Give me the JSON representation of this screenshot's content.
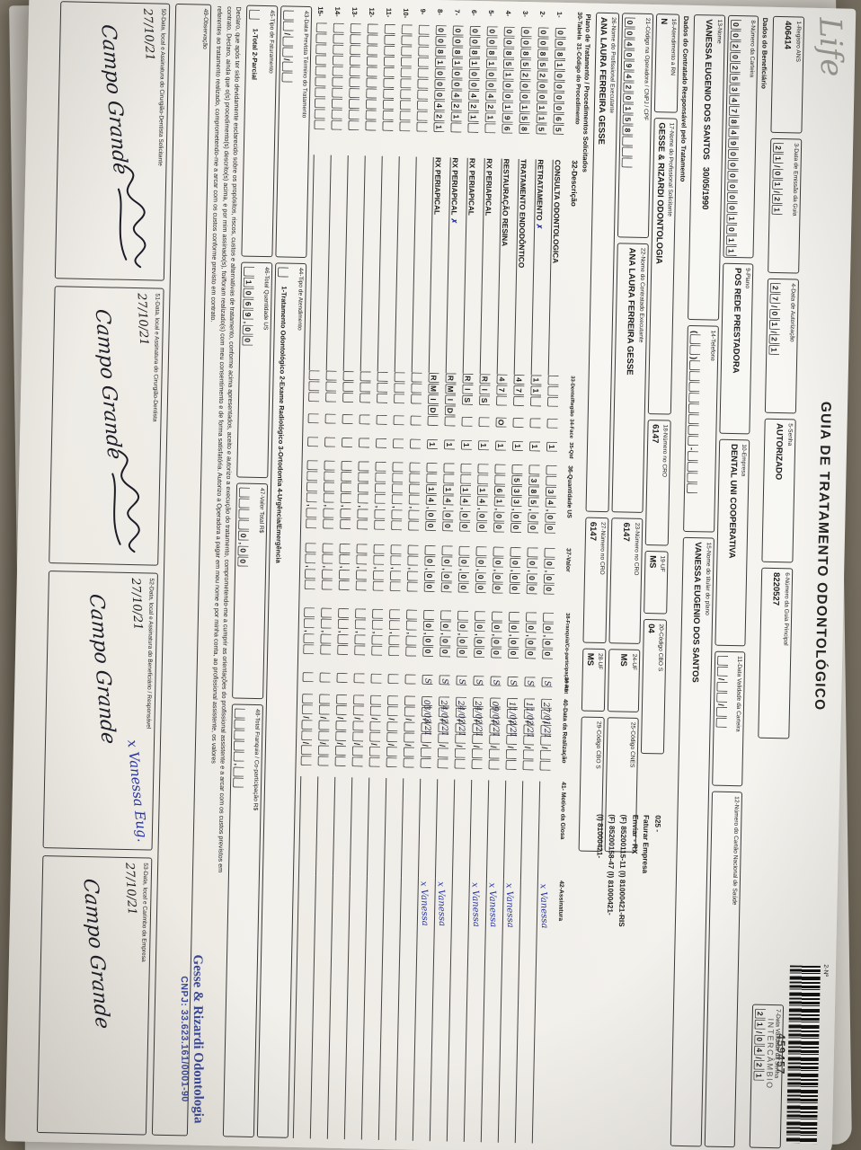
{
  "header": {
    "logo": "Life",
    "title": "GUIA DE TRATAMENTO ODONTOLÓGICO",
    "barcode_label": "2-Nº",
    "barcode_number": "459457",
    "barcode_caption": "INTERCÂMBIO"
  },
  "top_fields": {
    "registro_ans": {
      "label": "1-Registro ANS",
      "value": "406414"
    },
    "data_emissao": {
      "label": "3-Data de Emissão da Guia",
      "boxes": "21/01/21"
    },
    "data_autorizacao": {
      "label": "4-Data de Autorização",
      "boxes": "27/01/21"
    },
    "senha": {
      "label": "5-Senha",
      "value": "AUTORIZADO"
    },
    "guia_principal": {
      "label": "6-Número da Guia Principal",
      "value": "8220527"
    },
    "validade_senha": {
      "label": "7-Data Validade da Senha",
      "boxes": "21/04/21"
    }
  },
  "beneficiario": {
    "section": "Dados do Beneficiário",
    "carteira": {
      "label": "8-Número da Carteira",
      "boxes": "0020253478490000001011"
    },
    "plano": {
      "label": "9-Plano",
      "value": "POS REDE PRESTADORA"
    },
    "empresa": {
      "label": "10-Empresa",
      "value": "DENTAL UNI COOPERATIVA"
    },
    "validade_carteira": {
      "label": "11-Data Validade da Carteira",
      "boxes": "__/__/__"
    },
    "cartao_sus": {
      "label": "12-Número do Cartão Nacional de Saúde",
      "value": ""
    },
    "nome": {
      "label": "13-Nome",
      "value": "VANESSA EUGENIO DOS SANTOS",
      "nascimento": "30/05/1990"
    },
    "telefone": {
      "label": "14-Telefone",
      "boxes": "(__)________-____"
    },
    "titular": {
      "label": "15-Nome do titular do plano",
      "value": "VANESSA EUGENIO DOS SANTOS"
    }
  },
  "contratado": {
    "section": "Dados do Contratado Responsável pelo Tratamento",
    "rn": {
      "label": "16-Atendimento a RN",
      "value": "N"
    },
    "solicitante": {
      "label": "17-Nome do Profissional Solicitante",
      "value": "GESSE & RIZARDI ODONTOLOGIA"
    },
    "cro_solicitante": {
      "label": "18-Número no CRO",
      "value": "6147"
    },
    "uf_solicitante": {
      "label": "19-UF",
      "value": "MS"
    },
    "cbo_solicitante": {
      "label": "20-Código CBO S",
      "value": "04"
    },
    "codigo_operadora": {
      "label": "21-Código na Operadora / CNPJ / CPF",
      "boxes": "00409420158___"
    },
    "executante": {
      "label": "22-Nome do Contratado Executante",
      "value": "ANA LAURA FERREIRA GESSE"
    },
    "cro_executante": {
      "label": "23-Número no CRO",
      "value": "6147"
    },
    "uf_executante": {
      "label": "24-UF",
      "value": "MS"
    },
    "cnes": {
      "label": "25-Código CNES",
      "value": ""
    },
    "prof_executante": {
      "label": "26-Nome do Profissional Executante",
      "value": "ANA LAURA FERREIRA GESSE"
    },
    "cro_prof": {
      "label": "27-Número no CRO",
      "value": "6147"
    },
    "uf_prof": {
      "label": "28-UF",
      "value": "MS"
    },
    "cbo_prof": {
      "label": "29-Código CBO S",
      "value": ""
    },
    "annotation": [
      "025 -",
      "Faturar Empresa",
      "Enviar - RX",
      "(F) 85200115-11   (I) 81000421-RIS",
      "(F) 85200158-47   (I) 81000421-",
      "(I) 81000421-"
    ]
  },
  "table": {
    "section": "Plano de Tratamento / Procedimentos Solicitados",
    "headers": {
      "tabela": "30-Tabela",
      "codigo": "31-Código do Procedimento",
      "descricao": "32-Descrição",
      "dente": "33-Dente/Região",
      "face": "34-Face",
      "qtd": "35-Qtd",
      "us": "36-Quantidade US",
      "valor": "37-Valor",
      "franquia": "38-Franquia/Co-participação R$",
      "aut": "39-Aut",
      "data": "40-Data da Realização",
      "glosa": "41- Motivo da Glosa",
      "assinatura": "42-Assinatura"
    },
    "rows": [
      {
        "n": "1",
        "code": "0081000065",
        "desc": "CONSULTA ODONTOLOGICA",
        "dente": "___",
        "face": "_",
        "qtd": "1",
        "us": "__34,00",
        "valor": "_0,00",
        "franquia": "_0,00",
        "aut": "S",
        "data": "27/01/21",
        "assinatura": "x Vanessa",
        "mark": ""
      },
      {
        "n": "2",
        "code": "0085200115",
        "desc": "RETRATAMENTO",
        "dente": "11_",
        "face": "_",
        "qtd": "1",
        "us": "_385,00",
        "valor": "_0,00",
        "franquia": "_0,00",
        "aut": "S",
        "data": "11/02/21",
        "assinatura": "",
        "mark": "✗"
      },
      {
        "n": "3",
        "code": "0085200158",
        "desc": "TRATAMENTO ENDODÔNTICO",
        "dente": "47_",
        "face": "_",
        "qtd": "1",
        "us": "_533,00",
        "valor": "_0,00",
        "franquia": "_0,00",
        "aut": "S",
        "data": "11/02/21",
        "assinatura": "x Vanessa",
        "mark": ""
      },
      {
        "n": "4",
        "code": "0085100196",
        "desc": "RESTAURAÇÃO RESINA",
        "dente": "47_",
        "face": "O",
        "qtd": "1",
        "us": "__61,00",
        "valor": "_0,00",
        "franquia": "_0,00",
        "aut": "S",
        "data": "09/02/21",
        "assinatura": "x Vanessa",
        "mark": ""
      },
      {
        "n": "5",
        "code": "008100421_",
        "desc": "RX PERIAPICAL",
        "dente": "RIS",
        "face": "_",
        "qtd": "1",
        "us": "__14,00",
        "valor": "_0,00",
        "franquia": "_0,00",
        "aut": "S",
        "data": "24/02/21",
        "assinatura": "x Vanessa",
        "mark": ""
      },
      {
        "n": "6",
        "code": "008100421_",
        "desc": "RX PERIAPICAL",
        "dente": "RIS",
        "face": "_",
        "qtd": "1",
        "us": "__14,00",
        "valor": "_0,00",
        "franquia": "_0,00",
        "aut": "S",
        "data": "24/02/21",
        "assinatura": "",
        "mark": ""
      },
      {
        "n": "7",
        "code": "008100421_",
        "desc": "RX PERIAPICAL",
        "dente": "RMID",
        "face": "_",
        "qtd": "1",
        "us": "__14,00",
        "valor": "_0,00",
        "franquia": "_0,00",
        "aut": "S",
        "data": "24/02/21",
        "assinatura": "x Vanessa",
        "mark": "✗"
      },
      {
        "n": "8",
        "code": "0081000421",
        "desc": "RX PERIAPICAL",
        "dente": "RMID",
        "face": "_",
        "qtd": "1",
        "us": "__14,00",
        "valor": "_0,00",
        "franquia": "_0,00",
        "aut": "S",
        "data": "03/03/21",
        "assinatura": "x Vanessa",
        "mark": ""
      },
      {
        "n": "9",
        "code": "__________",
        "desc": "",
        "dente": "___",
        "face": "_",
        "qtd": "_",
        "us": "____,__",
        "valor": "__,__",
        "franquia": "__,__",
        "aut": "",
        "data": "",
        "assinatura": "",
        "mark": ""
      },
      {
        "n": "10",
        "code": "__________",
        "desc": "",
        "dente": "___",
        "face": "_",
        "qtd": "_",
        "us": "____,__",
        "valor": "__,__",
        "franquia": "__,__",
        "aut": "",
        "data": "",
        "assinatura": "",
        "mark": ""
      },
      {
        "n": "11",
        "code": "__________",
        "desc": "",
        "dente": "___",
        "face": "_",
        "qtd": "_",
        "us": "____,__",
        "valor": "__,__",
        "franquia": "__,__",
        "aut": "",
        "data": "",
        "assinatura": "",
        "mark": ""
      },
      {
        "n": "12",
        "code": "__________",
        "desc": "",
        "dente": "___",
        "face": "_",
        "qtd": "_",
        "us": "____,__",
        "valor": "__,__",
        "franquia": "__,__",
        "aut": "",
        "data": "",
        "assinatura": "",
        "mark": ""
      },
      {
        "n": "13",
        "code": "__________",
        "desc": "",
        "dente": "___",
        "face": "_",
        "qtd": "_",
        "us": "____,__",
        "valor": "__,__",
        "franquia": "__,__",
        "aut": "",
        "data": "",
        "assinatura": "",
        "mark": ""
      },
      {
        "n": "14",
        "code": "__________",
        "desc": "",
        "dente": "___",
        "face": "_",
        "qtd": "_",
        "us": "____,__",
        "valor": "__,__",
        "franquia": "__,__",
        "aut": "",
        "data": "",
        "assinatura": "",
        "mark": ""
      },
      {
        "n": "15",
        "code": "__________",
        "desc": "",
        "dente": "___",
        "face": "_",
        "qtd": "_",
        "us": "____,__",
        "valor": "__,__",
        "franquia": "__,__",
        "aut": "",
        "data": "",
        "assinatura": "",
        "mark": ""
      }
    ]
  },
  "totais": {
    "data_prevista": {
      "label": "43-Data Prevista Término do Tratamento",
      "boxes": "__/__/__"
    },
    "tipo_atendimento": {
      "label": "44-Tipo de Atendimento",
      "boxes": "_",
      "opcoes": "1-Tratamento Odontológico   2-Exame Radiológico   3-Ortodontia   4-Urgência/Emergência"
    },
    "tipo_faturamento": {
      "label": "45-Tipo de Faturamento",
      "boxes": "_",
      "opcoes": "1-Total  2-Parcial"
    },
    "total_us": {
      "label": "46-Total Quantidade US",
      "boxes": "_1069,00"
    },
    "valor_total": {
      "label": "47-Valor Total R$",
      "boxes": "____0,00"
    },
    "total_franquia": {
      "label": "48-Total Franquia / Co-participação R$",
      "boxes": "_____,__"
    }
  },
  "declaracao": {
    "lines": [
      "Declaro, que após ter sido devidamente esclarecido sobre os propósitos, riscos, custos e alternativas de tratamento, conforme acima apresentados, aceito e autorizo a execução do tratamento, comprometendo-me a cumprir as orientações do profissional assistente e a arcar com os custos previstos em",
      "contrato. Declaro, ainda que o(s) procedimento(s) descrito(s) acima, e por mim assinado(s), foi/foram realizado(s) com meu consentimento e de forma satisfatória. Autorizo a Operadora a pagar em meu nome e por minha conta, ao profissional assistente, os valores",
      "referentes ao tratamento realizado, comprometendo-me a arcar com os custos conforme previsto em contrato."
    ]
  },
  "stamp": {
    "line1": "Gesse & Rizardi Odontologia",
    "line2": "CNPJ: 33.623.161/0001-90"
  },
  "observacao": {
    "label": "49-Observação"
  },
  "assinaturas": [
    {
      "label": "50-Data, local e Assinatura do Cirurgião-Dentista Solicitante",
      "date": "27/10/21",
      "place": "Campo Grande",
      "sig": "scribble",
      "ink": "black"
    },
    {
      "label": "51-Data, local e Assinatura do Cirurgião-Dentista",
      "date": "27/10/21",
      "place": "Campo Grande",
      "sig": "scribble",
      "ink": "black"
    },
    {
      "label": "52-Data, local e Assinatura do Beneficiário / Responsável",
      "date": "27/10/21",
      "place": "Campo Grande",
      "sig": "x Vanessa Eug.",
      "ink": "blue"
    },
    {
      "label": "53-Data, local e Carimbo da Empresa",
      "date": "27/10/21",
      "place": "Campo Grande",
      "sig": "",
      "ink": "black"
    }
  ]
}
